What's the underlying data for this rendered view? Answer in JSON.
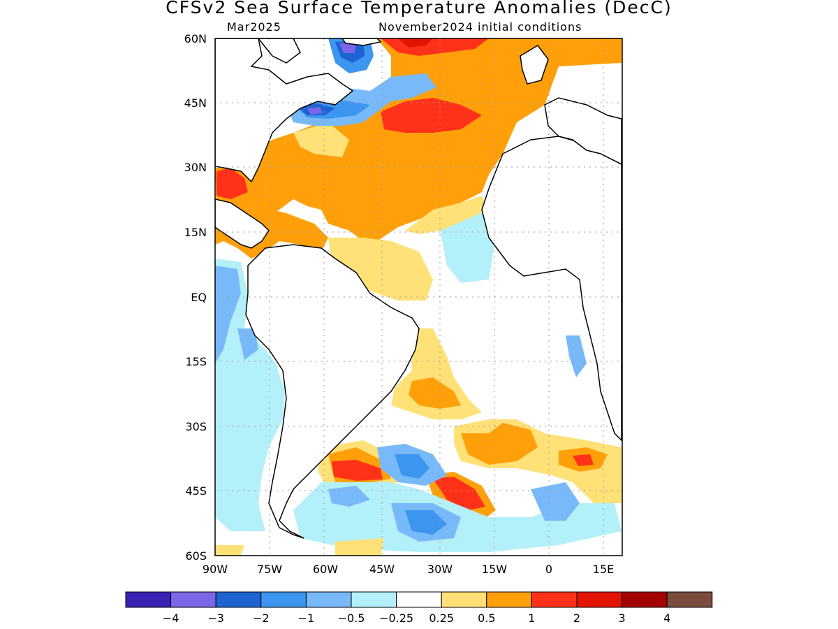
{
  "title": "CFSv2 Sea Surface Temperature Anomalies (DecC)",
  "subtitle_left": "Mar2025",
  "subtitle_right": "November2024 initial conditions",
  "map": {
    "lon_range": [
      -90,
      20
    ],
    "lat_range": [
      -60,
      60
    ],
    "lat_labels": [
      "60N",
      "45N",
      "30N",
      "15N",
      "15S",
      "30S",
      "45S",
      "60S"
    ],
    "lat_label_eq": "EQ",
    "lon_labels": [
      "90W",
      "75W",
      "60W",
      "45W",
      "30W",
      "15W",
      "0",
      "15E"
    ],
    "gridlines": "dotted",
    "land_fill": "#ffffff",
    "coastline_color": "#000000"
  },
  "colorbar": {
    "colors": [
      "#3b20b4",
      "#7a66e6",
      "#1d64d2",
      "#3c96f0",
      "#78b9fa",
      "#b4f0fa",
      "#ffffff",
      "#ffe178",
      "#ffa00a",
      "#ff3219",
      "#e11400",
      "#a50000",
      "#7b4b3d"
    ],
    "labels": [
      "−4",
      "−3",
      "−2",
      "−1",
      "−0.5",
      "−0.25",
      "0.25",
      "0.5",
      "1",
      "2",
      "3",
      "4"
    ]
  }
}
